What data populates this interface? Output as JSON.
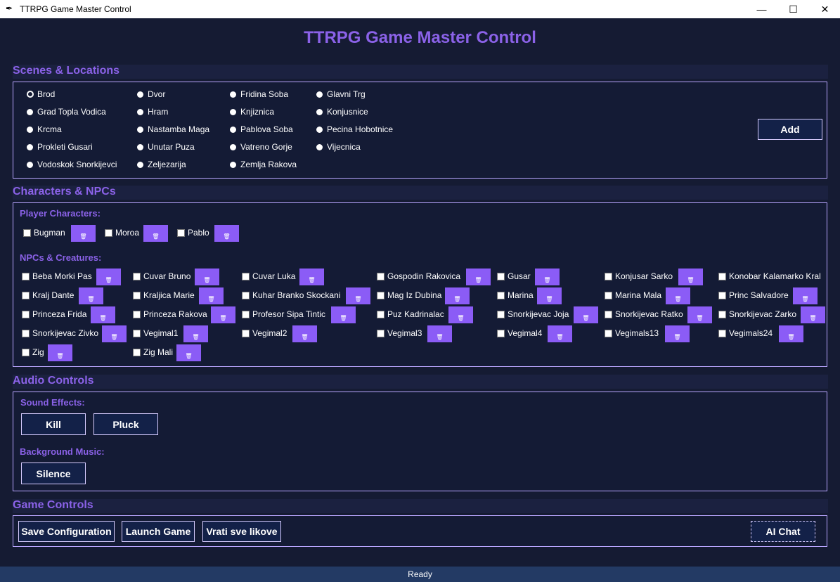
{
  "window": {
    "title": "TTRPG Game Master Control",
    "app_icon": "feather-icon",
    "minimize": "—",
    "maximize": "☐",
    "close": "✕"
  },
  "header": {
    "title": "TTRPG Game Master Control"
  },
  "colors": {
    "accent": "#8b62e8",
    "background": "#151b33",
    "button_bg": "#132148",
    "trash_bg": "#8b5cf6",
    "status_bg": "#233a64"
  },
  "scenes": {
    "label": "Scenes & Locations",
    "selected": "Brod",
    "items": [
      "Brod",
      "Dvor",
      "Fridina Soba",
      "Glavni Trg",
      "Grad Topla Vodica",
      "Hram",
      "Knjiznica",
      "Konjusnice",
      "Krcma",
      "Nastamba Maga",
      "Pablova Soba",
      "Pecina Hobotnice",
      "Prokleti Gusari",
      "Unutar Puza",
      "Vatreno Gorje",
      "Vijecnica",
      "Vodoskok Snorkijevci",
      "Zeljezarija",
      "Zemlja Rakova"
    ],
    "add_label": "Add"
  },
  "characters": {
    "label": "Characters & NPCs",
    "players_label": "Player Characters:",
    "players": [
      "Bugman",
      "Moroa",
      "Pablo"
    ],
    "npcs_label": "NPCs & Creatures:",
    "npcs": [
      "Beba Morki Pas",
      "Cuvar Bruno",
      "Cuvar Luka",
      "Gospodin Rakovica",
      "Gusar",
      "Konjusar Sarko",
      "Konobar Kalamarko Kral",
      "Kralj Dante",
      "Kraljica Marie",
      "Kuhar Branko Skockani",
      "Mag Iz Dubina",
      "Marina",
      "Marina Mala",
      "Princ Salvadore",
      "Princeza Frida",
      "Princeza Rakova",
      "Profesor Sipa Tintic",
      "Puz Kadrinalac",
      "Snorkijevac Joja",
      "Snorkijevac Ratko",
      "Snorkijevac Zarko",
      "Snorkijevac Zivko",
      "Vegimal1",
      "Vegimal2",
      "Vegimal3",
      "Vegimal4",
      "Vegimals13",
      "Vegimals24",
      "Zig",
      "Zig Mali"
    ],
    "trash_glyph": "🗑"
  },
  "audio": {
    "label": "Audio Controls",
    "sfx_label": "Sound Effects:",
    "sfx": [
      "Kill",
      "Pluck"
    ],
    "music_label": "Background Music:",
    "music": [
      "Silence"
    ]
  },
  "game": {
    "label": "Game Controls",
    "buttons": [
      "Save Configuration",
      "Launch Game",
      "Vrati sve likove"
    ],
    "ai_chat": "AI Chat"
  },
  "status": {
    "text": "Ready"
  }
}
